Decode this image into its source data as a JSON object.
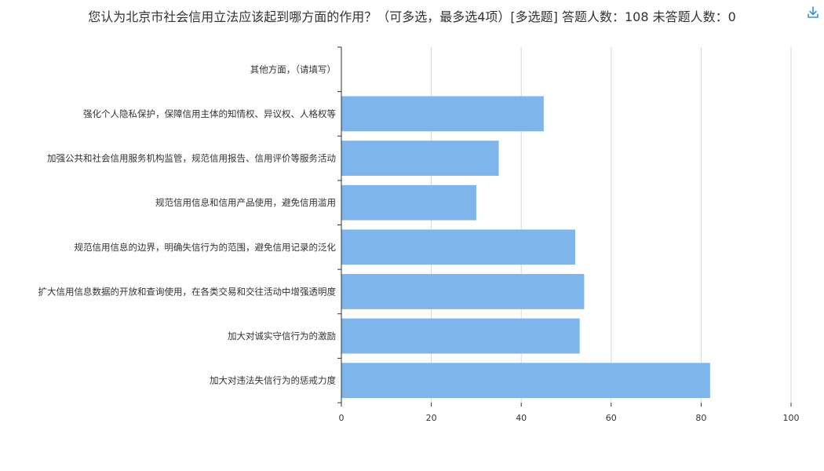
{
  "header": {
    "title": "您认为北京市社会信用立法应该起到哪方面的作用？（可多选，最多选4项）[多选题]  答题人数：108  未答题人数：0",
    "download_icon": "download-icon"
  },
  "colors": {
    "bar": "#7eb5ea",
    "grid": "#d9d9d9",
    "axis": "#333333",
    "text": "#333333",
    "accent": "#3a8fd9"
  },
  "chart_data": {
    "type": "bar",
    "orientation": "horizontal",
    "categories": [
      "其他方面，（请填写）",
      "强化个人隐私保护，保障信用主体的知情权、异议权、人格权等",
      "加强公共和社会信用服务机构监管，规范信用报告、信用评价等服务活动",
      "规范信用信息和信用产品使用，避免信用滥用",
      "规范信用信息的边界，明确失信行为的范围，避免信用记录的泛化",
      "扩大信用信息数据的开放和查询使用，在各类交易和交往活动中增强透明度",
      "加大对诚实守信行为的激励",
      "加大对违法失信行为的惩戒力度"
    ],
    "values": [
      0,
      45,
      35,
      30,
      52,
      54,
      53,
      82
    ],
    "xlim": [
      0,
      100
    ],
    "xticks": [
      0,
      20,
      40,
      60,
      80,
      100
    ],
    "grid": true,
    "legend": "none"
  }
}
